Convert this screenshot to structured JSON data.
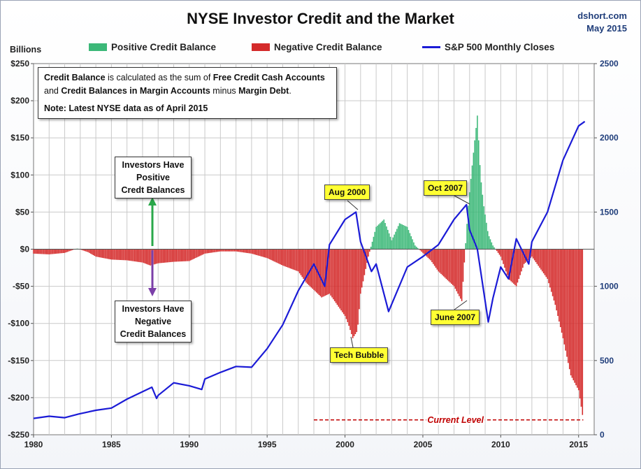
{
  "chart_data": {
    "type": "bar",
    "title": "NYSE Investor Credit and the Market",
    "source": "dshort.com",
    "source_date": "May 2015",
    "left_axis_unit": "Billions",
    "left_axis": {
      "min": -250,
      "max": 250,
      "ticks": [
        250,
        200,
        150,
        100,
        50,
        0,
        -50,
        -100,
        -150,
        -200,
        -250
      ],
      "tick_labels": [
        "$250",
        "$200",
        "$150",
        "$100",
        "$50",
        "$0",
        "-$50",
        "-$100",
        "-$150",
        "-$200",
        "-$250"
      ]
    },
    "right_axis": {
      "min": 0,
      "max": 2500,
      "ticks": [
        2500,
        2000,
        1500,
        1000,
        500,
        0
      ],
      "tick_labels": [
        "2500",
        "2000",
        "1500",
        "1000",
        "500",
        "0"
      ]
    },
    "x_axis": {
      "min": 1980,
      "max": 2016,
      "ticks": [
        1980,
        1985,
        1990,
        1995,
        2000,
        2005,
        2010,
        2015
      ],
      "tick_labels": [
        "1980",
        "1985",
        "1990",
        "1995",
        "2000",
        "2005",
        "2010",
        "2015"
      ]
    },
    "grid": true,
    "legend": [
      {
        "label": "Positive Credit Balance",
        "color": "#3cb878",
        "kind": "bar"
      },
      {
        "label": "Negative Credit Balance",
        "color": "#d42a2a",
        "kind": "bar"
      },
      {
        "label": "S&P 500 Monthly Closes",
        "color": "#1b1bd6",
        "kind": "line"
      }
    ],
    "colors": {
      "positive": "#3cb878",
      "negative": "#d42a2a",
      "sp500": "#1b1bd6"
    },
    "credit_balance": {
      "x": [
        1980,
        1981,
        1982,
        1982.8,
        1983.5,
        1984,
        1985,
        1986,
        1987,
        1987.5,
        1988,
        1989,
        1990,
        1991,
        1992,
        1993,
        1994,
        1995,
        1996,
        1997,
        1997.5,
        1998,
        1998.5,
        1999,
        1999.5,
        2000,
        2000.2,
        2000.5,
        2000.8,
        2001,
        2001.5,
        2002,
        2002.5,
        2003,
        2003.5,
        2004,
        2004.5,
        2005,
        2005.5,
        2006,
        2006.5,
        2007,
        2007.5,
        2007.9,
        2008.2,
        2008.5,
        2008.7,
        2008.9,
        2009.2,
        2009.5,
        2010,
        2010.5,
        2011,
        2011.5,
        2012,
        2012.5,
        2013,
        2013.5,
        2014,
        2014.5,
        2015,
        2015.3
      ],
      "y": [
        -6,
        -7,
        -5,
        1,
        -4,
        -10,
        -14,
        -15,
        -18,
        -22,
        -19,
        -17,
        -16,
        -6,
        -3,
        -3,
        -6,
        -12,
        -22,
        -30,
        -45,
        -55,
        -65,
        -60,
        -75,
        -90,
        -100,
        -120,
        -110,
        -60,
        -10,
        30,
        40,
        12,
        35,
        30,
        5,
        -5,
        -15,
        -30,
        -40,
        -50,
        -70,
        55,
        120,
        180,
        100,
        60,
        20,
        5,
        -10,
        -40,
        -50,
        -20,
        -10,
        -25,
        -40,
        -75,
        -120,
        -170,
        -190,
        -230
      ]
    },
    "sp500": {
      "x": [
        1980,
        1981,
        1982,
        1982.9,
        1984,
        1985,
        1986,
        1987.6,
        1987.9,
        1988,
        1989,
        1990,
        1990.8,
        1991,
        1992,
        1993,
        1994,
        1995,
        1996,
        1997,
        1998,
        1998.7,
        1999,
        2000,
        2000.7,
        2001,
        2001.7,
        2002,
        2002.8,
        2003,
        2004,
        2005,
        2006,
        2007,
        2007.8,
        2008,
        2008.5,
        2009.2,
        2009.5,
        2010,
        2010.5,
        2011,
        2011.8,
        2012,
        2013,
        2014,
        2015,
        2015.4
      ],
      "y": [
        110,
        125,
        115,
        140,
        165,
        180,
        240,
        320,
        245,
        265,
        350,
        330,
        305,
        375,
        420,
        460,
        455,
        580,
        740,
        970,
        1150,
        1000,
        1280,
        1450,
        1500,
        1300,
        1100,
        1150,
        830,
        880,
        1130,
        1200,
        1280,
        1450,
        1550,
        1380,
        1250,
        760,
        920,
        1130,
        1050,
        1320,
        1150,
        1300,
        1500,
        1850,
        2080,
        2110
      ]
    },
    "current_level": {
      "label": "Current Level",
      "value": -230,
      "from_x": 1998,
      "to_x": 2015.3
    },
    "info_box": {
      "lines": [
        [
          {
            "t": "Credit Balance",
            "b": true
          },
          {
            "t": " is calculated as the sum of ",
            "b": false
          },
          {
            "t": "Free Credit Cash Accounts",
            "b": true
          }
        ],
        [
          {
            "t": "and ",
            "b": false
          },
          {
            "t": "Credit Balances in Margin Accounts",
            "b": true
          },
          {
            "t": " minus ",
            "b": false
          },
          {
            "t": "Margin Debt",
            "b": true
          },
          {
            "t": ".",
            "b": false
          }
        ],
        [
          {
            "t": "Note: Latest NYSE data as of April 2015",
            "b": true
          }
        ]
      ]
    },
    "positive_box": {
      "lines": [
        "Investors Have",
        "Positive",
        "Credt Balances"
      ]
    },
    "negative_box": {
      "lines": [
        "Investors Have",
        "Negative",
        "Credit Balances"
      ]
    },
    "annotations": [
      {
        "label": "Aug 2000",
        "x": 2000.6,
        "y_right": 1490
      },
      {
        "label": "Oct 2007",
        "x": 2007.8,
        "y_right": 1550
      },
      {
        "label": "Tech Bubble",
        "x": 2000.3,
        "y_credit": -118
      },
      {
        "label": "June 2007",
        "x": 2007.4,
        "y_credit": -73
      }
    ]
  }
}
